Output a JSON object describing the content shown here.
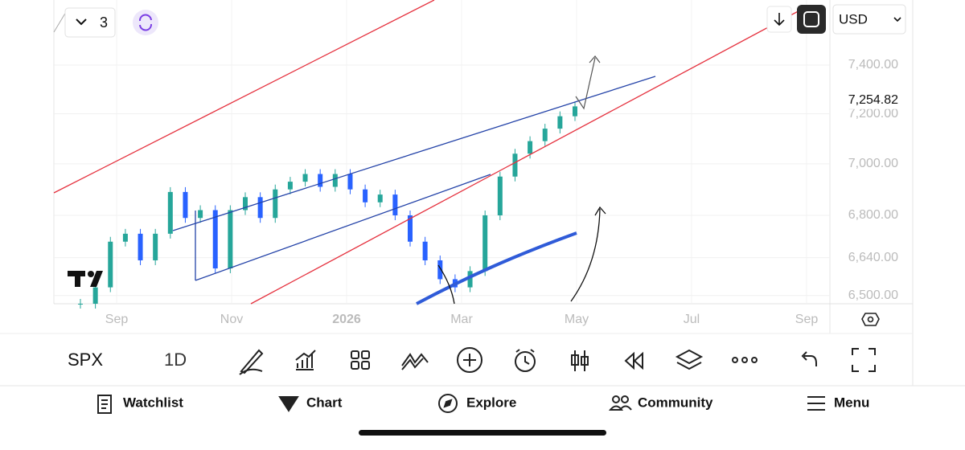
{
  "chart_data": {
    "type": "candles",
    "symbol": "SPX",
    "interval": "1D",
    "currency": "USD",
    "layout_count": "3",
    "log_scale": true,
    "grid": true,
    "ylim": [
      6470,
      7676
    ],
    "yticks": [
      {
        "value": 7400,
        "label": "7,400.00"
      },
      {
        "value": 7200,
        "label": "7,200.00"
      },
      {
        "value": 7000,
        "label": "7,000.00"
      },
      {
        "value": 6800,
        "label": "6,800.00"
      },
      {
        "value": 6640,
        "label": "6,640.00"
      },
      {
        "value": 6500,
        "label": "6,500.00"
      }
    ],
    "last_price": {
      "value": 7254.82,
      "label": "7,254.82"
    },
    "x_labels": [
      "Sep",
      "Nov",
      "2026",
      "Mar",
      "May",
      "Jul",
      "Sep"
    ],
    "up_color": "#26a69a",
    "down_color": "#2962ff",
    "values": [
      6470,
      6530,
      6700,
      6730,
      6630,
      6730,
      6890,
      6790,
      6820,
      6600,
      6820,
      6870,
      6790,
      6900,
      6930,
      6960,
      6910,
      6960,
      6900,
      6850,
      6880,
      6800,
      6700,
      6630,
      6560,
      6530,
      6590,
      6800,
      6950,
      7040,
      7090,
      7140,
      7190,
      7230
    ]
  },
  "nav": [
    "Watchlist",
    "Chart",
    "Explore",
    "Community",
    "Menu"
  ]
}
